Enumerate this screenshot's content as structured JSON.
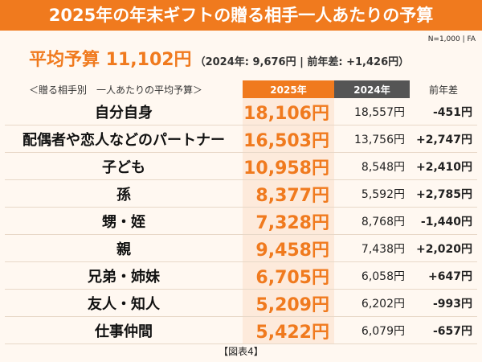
{
  "header": {
    "title": "2025年の年末ギフトの贈る相手一人あたりの予算"
  },
  "summary": {
    "label": "平均予算 11,102円",
    "detail": "（2024年: 9,676円 | 前年差: +1,426円）",
    "note": "N=1,000 | FA"
  },
  "table": {
    "caption": "＜贈る相手別　一人あたりの平均予算＞",
    "columns": [
      "2025年",
      "2024年",
      "前年差"
    ],
    "rows": [
      [
        "自分自身",
        "18,106円",
        "18,557円",
        "-451円"
      ],
      [
        "配偶者や恋人などのパートナー",
        "16,503円",
        "13,756円",
        "+2,747円"
      ],
      [
        "子ども",
        "10,958円",
        "8,548円",
        "+2,410円"
      ],
      [
        "孫",
        "8,377円",
        "5,592円",
        "+2,785円"
      ],
      [
        "甥・姪",
        "7,328円",
        "8,768円",
        "-1,440円"
      ],
      [
        "親",
        "9,458円",
        "7,438円",
        "+2,020円"
      ],
      [
        "兄弟・姉妹",
        "6,705円",
        "6,058円",
        "+647円"
      ],
      [
        "友人・知人",
        "5,209円",
        "6,202円",
        "-993円"
      ],
      [
        "仕事仲間",
        "5,422円",
        "6,079円",
        "-657円"
      ]
    ]
  },
  "footer": {
    "caption": "【図表4】"
  }
}
